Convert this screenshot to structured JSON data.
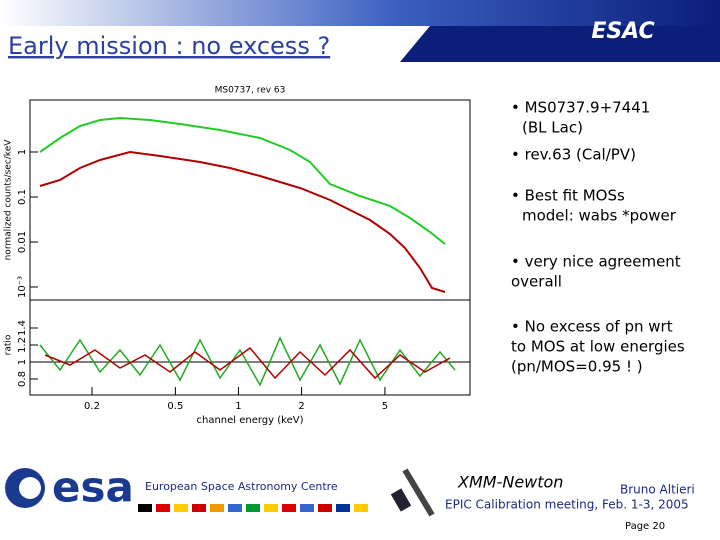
{
  "header": {
    "title": "Early mission : no excess ?",
    "banner": "ESAC"
  },
  "figure": {
    "title": "MS0737, rev 63",
    "y_label": "normalized counts/sec/keV",
    "ratio_label": "ratio",
    "x_label": "channel energy (keV)",
    "yticks": [
      1,
      0.1,
      0.01,
      {
        "value": 0.001,
        "label": "10⁻³"
      }
    ],
    "ratio_ticks": [
      0.8,
      1,
      1.2,
      1.4
    ],
    "xticks": [
      0.2,
      0.5,
      1,
      2,
      5
    ]
  },
  "bullets": [
    {
      "lines": [
        "• MS0737.9+7441",
        "(BL Lac)"
      ]
    },
    {
      "lines": [
        "• rev.63 (Cal/PV)"
      ]
    },
    {
      "lines": [
        "• Best fit MOSs",
        "model: wabs *power"
      ]
    },
    {
      "lines": [
        "• very nice agreement",
        "overall"
      ]
    },
    {
      "lines": [
        "• No excess of pn wrt",
        "to MOS at low energies",
        "(pn/MOS=0.95 ! )"
      ]
    }
  ],
  "footer": {
    "org": "European Space Astronomy Centre",
    "logo": "esa",
    "mission": "XMM-Newton",
    "author": "Bruno Altieri",
    "meeting": "EPIC Calibration meeting, Feb. 1-3, 2005",
    "page": "Page 20"
  }
}
